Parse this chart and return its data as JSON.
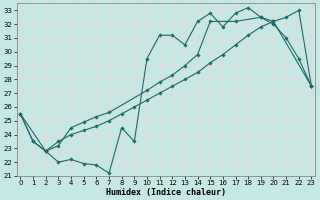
{
  "xlabel": "Humidex (Indice chaleur)",
  "xlim": [
    -0.3,
    23.3
  ],
  "ylim": [
    21.0,
    33.5
  ],
  "xticks": [
    0,
    1,
    2,
    3,
    4,
    5,
    6,
    7,
    8,
    9,
    10,
    11,
    12,
    13,
    14,
    15,
    16,
    17,
    18,
    19,
    20,
    21,
    22,
    23
  ],
  "yticks": [
    21,
    22,
    23,
    24,
    25,
    26,
    27,
    28,
    29,
    30,
    31,
    32,
    33
  ],
  "bg_color": "#c5e8e4",
  "line_color": "#1a6b6b",
  "grid_color": "#e8d8d8",
  "c1_x": [
    0,
    1,
    2,
    3,
    4,
    5,
    6,
    7,
    8,
    9,
    10,
    11,
    12,
    13,
    14,
    15,
    16,
    17,
    18,
    19,
    20,
    21,
    22,
    23
  ],
  "c1_y": [
    25.5,
    23.5,
    22.8,
    22.0,
    22.2,
    21.9,
    21.8,
    21.2,
    24.5,
    23.5,
    29.5,
    31.2,
    31.2,
    30.5,
    32.2,
    32.8,
    31.8,
    32.8,
    33.2,
    32.5,
    32.0,
    31.0,
    29.5,
    27.5
  ],
  "c2_x": [
    0,
    2,
    3,
    4,
    5,
    6,
    7,
    10,
    11,
    12,
    13,
    14,
    15,
    17,
    19,
    20,
    23
  ],
  "c2_y": [
    25.5,
    22.8,
    23.2,
    24.5,
    24.9,
    25.3,
    25.6,
    27.2,
    27.8,
    28.3,
    29.0,
    29.8,
    32.2,
    32.2,
    32.5,
    32.2,
    27.5
  ],
  "c3_x": [
    0,
    1,
    2,
    3,
    4,
    5,
    6,
    7,
    8,
    9,
    10,
    11,
    12,
    13,
    14,
    15,
    16,
    17,
    18,
    19,
    20,
    21,
    22,
    23
  ],
  "c3_y": [
    25.5,
    23.5,
    22.8,
    23.5,
    24.0,
    24.3,
    24.6,
    25.0,
    25.5,
    26.0,
    26.5,
    27.0,
    27.5,
    28.0,
    28.5,
    29.2,
    29.8,
    30.5,
    31.2,
    31.8,
    32.2,
    32.5,
    33.0,
    27.5
  ],
  "tick_fontsize": 5,
  "xlabel_fontsize": 6,
  "marker_size": 1.8,
  "line_width": 0.8
}
